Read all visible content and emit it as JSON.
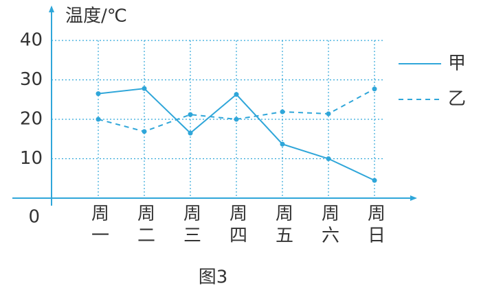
{
  "chart_data": {
    "type": "line",
    "caption": "图3",
    "y_label": "温度/℃",
    "categories": [
      "周一",
      "周二",
      "周三",
      "周四",
      "周五",
      "周六",
      "周日"
    ],
    "series": [
      {
        "name": "甲",
        "color": "#2fa6d9",
        "linestyle": "solid",
        "values": [
          26.5,
          27.8,
          16.5,
          26.3,
          13.7,
          10,
          4.5
        ]
      },
      {
        "name": "乙",
        "color": "#2fa6d9",
        "linestyle": "dashed",
        "values": [
          20,
          16.9,
          21.2,
          20,
          21.9,
          21.4,
          27.7
        ]
      }
    ],
    "ylim": [
      0,
      40
    ],
    "yticks": [
      0,
      10,
      20,
      30,
      40
    ],
    "grid": true,
    "legend": "right"
  }
}
